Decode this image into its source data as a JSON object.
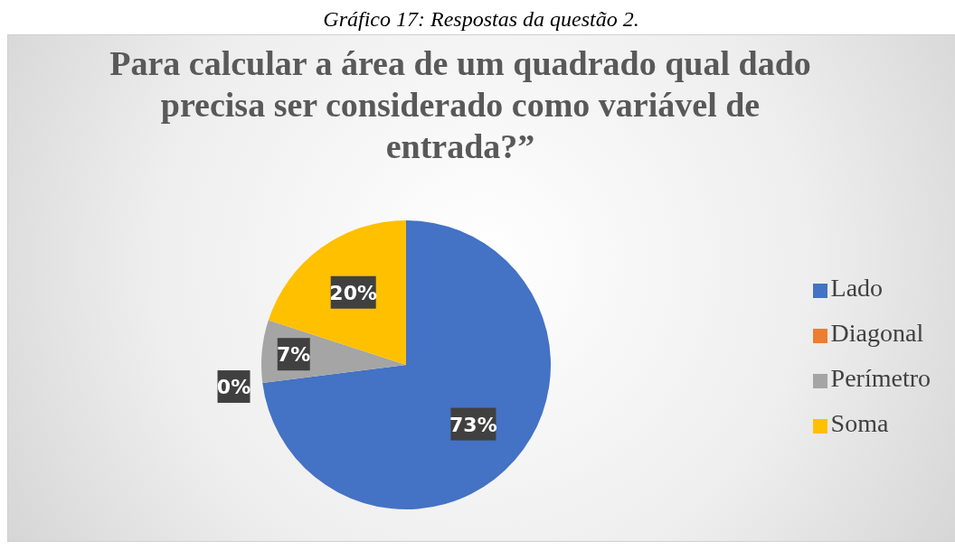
{
  "chart_data": {
    "type": "pie",
    "title": "Para calcular a área de um quadrado qual dado precisa ser considerado como variável de entrada?”",
    "annotations": [
      "Gráfico 17: Respostas da questão 2."
    ],
    "categories": [
      "Lado",
      "Diagonal",
      "Perímetro",
      "Soma"
    ],
    "values": [
      73,
      0,
      7,
      20
    ],
    "colors": [
      "#4472c4",
      "#ed7d31",
      "#a5a5a5",
      "#ffc000"
    ],
    "value_labels": [
      "73%",
      "0%",
      "7%",
      "20%"
    ],
    "legend": "right"
  }
}
